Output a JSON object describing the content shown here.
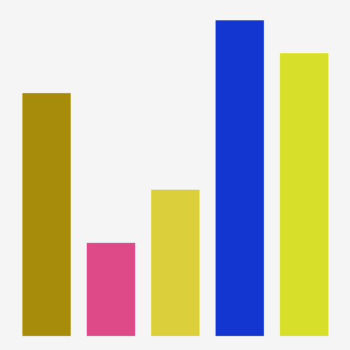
{
  "chart_data": {
    "type": "bar",
    "values": [
      347,
      133,
      209,
      451,
      404
    ],
    "colors": [
      "#a68c0a",
      "#de4a88",
      "#dbd03c",
      "#1236cf",
      "#d7df2a"
    ],
    "ylim": [
      0,
      480
    ],
    "grid": false,
    "legend": "none",
    "title": "",
    "xlabel": "",
    "ylabel": ""
  }
}
